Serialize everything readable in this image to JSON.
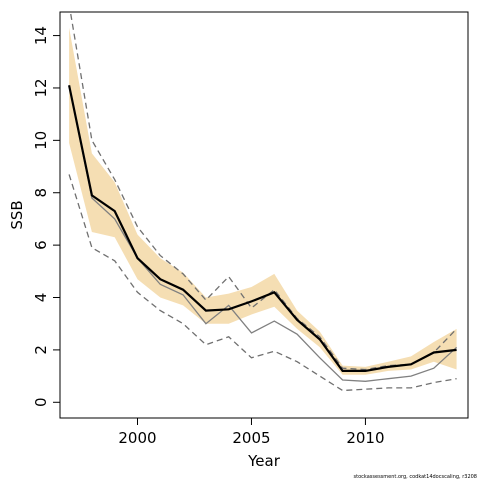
{
  "chart_data": {
    "type": "line",
    "xlabel": "Year",
    "ylabel": "SSB",
    "credit": "stockassessment.org, codkat14docscaling, r3208",
    "xlim": [
      1996.6,
      2014.5
    ],
    "ylim": [
      -0.6,
      14.9
    ],
    "x_ticks": [
      2000,
      2005,
      2010
    ],
    "y_ticks": [
      0,
      2,
      4,
      6,
      8,
      10,
      12,
      14
    ],
    "grid": false,
    "years": [
      1997,
      1998,
      1999,
      2000,
      2001,
      2002,
      2003,
      2004,
      2005,
      2006,
      2007,
      2008,
      2009,
      2010,
      2011,
      2012,
      2013,
      2014
    ],
    "ssb_estimate": [
      12.1,
      7.9,
      7.3,
      5.5,
      4.7,
      4.3,
      3.5,
      3.55,
      3.85,
      4.2,
      3.15,
      2.4,
      1.2,
      1.2,
      1.35,
      1.45,
      1.9,
      2.0
    ],
    "ci_upper": [
      14.3,
      9.5,
      8.4,
      6.4,
      5.5,
      4.95,
      4.0,
      4.15,
      4.4,
      4.9,
      3.5,
      2.7,
      1.4,
      1.35,
      1.55,
      1.75,
      2.3,
      2.8
    ],
    "ci_lower": [
      9.9,
      6.5,
      6.3,
      4.7,
      4.0,
      3.7,
      3.0,
      3.0,
      3.35,
      3.65,
      2.8,
      2.1,
      1.05,
      1.05,
      1.2,
      1.25,
      1.55,
      1.25
    ],
    "alt_estimate": [
      12.1,
      7.8,
      7.0,
      5.5,
      4.5,
      4.1,
      3.0,
      3.7,
      2.65,
      3.1,
      2.6,
      1.7,
      0.85,
      0.8,
      0.9,
      1.0,
      1.3,
      2.1
    ],
    "alt_upper": [
      15.2,
      10.0,
      8.5,
      6.7,
      5.6,
      4.9,
      3.9,
      4.8,
      3.6,
      4.3,
      3.2,
      2.5,
      1.3,
      1.25,
      1.4,
      1.45,
      1.9,
      2.8
    ],
    "alt_lower": [
      8.7,
      5.9,
      5.4,
      4.2,
      3.5,
      3.0,
      2.2,
      2.5,
      1.7,
      1.95,
      1.55,
      1.0,
      0.45,
      0.5,
      0.55,
      0.55,
      0.75,
      0.9
    ],
    "colors": {
      "band": "#f5deb3",
      "estimate": "#000000",
      "alt_estimate": "#808080",
      "alt_bounds": "#707070",
      "frame": "#000000"
    }
  }
}
